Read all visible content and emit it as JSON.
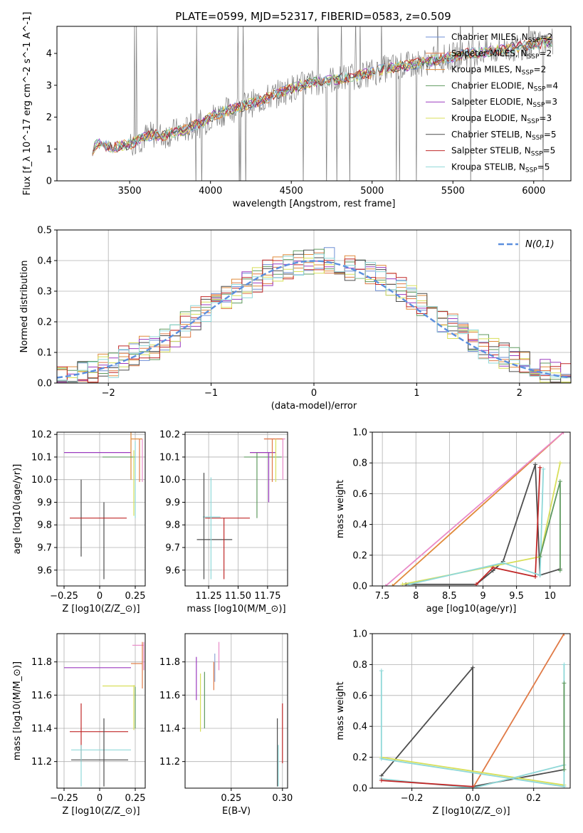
{
  "figure": {
    "title": "PLATE=0599, MJD=52317, FIBERID=0583, z=0.509"
  },
  "colors": {
    "Chabrier MILES": "#6e8fd6",
    "Salpeter MILES": "#e07a46",
    "Kroupa MILES": "#e08a3a",
    "Chabrier ELODIE": "#5f9a5f",
    "Salpeter ELODIE": "#9b3bbf",
    "Kroupa ELODIE": "#d8df5a",
    "Chabrier STELIB": "#4d4d4d",
    "Salpeter STELIB": "#c02828",
    "Kroupa STELIB": "#8fd8d8",
    "normal_curve": "#5b8fde",
    "pink_model": "#e98ac8"
  },
  "legend_entries": [
    "Chabrier MILES, N_SSP=2",
    "Salpeter MILES, N_SSP=2",
    "Kroupa MILES, N_SSP=2",
    "Chabrier ELODIE, N_SSP=4",
    "Salpeter ELODIE, N_SSP=3",
    "Kroupa ELODIE, N_SSP=3",
    "Chabrier STELIB, N_SSP=5",
    "Salpeter STELIB, N_SSP=5",
    "Kroupa STELIB, N_SSP=5"
  ],
  "chart_data": [
    {
      "id": "spectrum",
      "type": "line",
      "xlabel": "wavelength [Angstrom, rest frame]",
      "ylabel": "Flux [f_λ 10^-17 erg cm^-2 s^-1 A^-1]",
      "xlim": [
        3050,
        6230
      ],
      "ylim": [
        0,
        4.85
      ],
      "xticks": [
        3500,
        4000,
        4500,
        5000,
        5500,
        6000
      ],
      "yticks": [
        0,
        1,
        2,
        3,
        4
      ],
      "legend": "upper right",
      "x": [
        3270,
        3300,
        3350,
        3400,
        3450,
        3500,
        3550,
        3600,
        3650,
        3700,
        3750,
        3800,
        3850,
        3900,
        3950,
        4000,
        4100,
        4200,
        4300,
        4400,
        4500,
        4600,
        4700,
        4800,
        4900,
        5000,
        5100,
        5200,
        5300,
        5400,
        5500,
        5600,
        5700,
        5800,
        5900,
        6000,
        6100
      ],
      "model_flux": [
        0.95,
        1.2,
        1.1,
        1.05,
        1.1,
        1.15,
        1.25,
        1.4,
        1.45,
        1.4,
        1.5,
        1.55,
        1.6,
        1.75,
        1.8,
        2.0,
        2.2,
        2.35,
        2.5,
        2.7,
        2.9,
        3.05,
        3.15,
        3.2,
        3.3,
        3.4,
        3.55,
        3.6,
        3.7,
        3.8,
        3.9,
        4.0,
        4.05,
        4.1,
        4.2,
        4.3,
        4.35
      ],
      "data_series": "Chabrier STELIB (observed spectrum, grey)"
    },
    {
      "id": "residuals",
      "type": "histogram",
      "xlabel": "(data-model)/error",
      "ylabel": "Normed distribution",
      "xlim": [
        -2.5,
        2.5
      ],
      "ylim": [
        0,
        0.5
      ],
      "xticks": [
        -2,
        -1,
        0,
        1,
        2
      ],
      "yticks": [
        0.0,
        0.1,
        0.2,
        0.3,
        0.4,
        0.5
      ],
      "legend_label": "N(0,1)",
      "bin_width": 0.1,
      "bin_start": -2.5,
      "reference_counts": [
        0.02,
        0.02,
        0.03,
        0.04,
        0.05,
        0.06,
        0.08,
        0.09,
        0.11,
        0.12,
        0.14,
        0.16,
        0.19,
        0.21,
        0.24,
        0.26,
        0.28,
        0.3,
        0.32,
        0.34,
        0.36,
        0.37,
        0.38,
        0.39,
        0.4,
        0.4,
        0.4,
        0.39,
        0.38,
        0.37,
        0.36,
        0.34,
        0.32,
        0.3,
        0.28,
        0.26,
        0.24,
        0.21,
        0.19,
        0.16,
        0.14,
        0.12,
        0.11,
        0.09,
        0.08,
        0.06,
        0.05,
        0.04,
        0.03,
        0.02
      ]
    },
    {
      "id": "age_vs_Z",
      "type": "scatter",
      "xlabel": "Z [log10(Z/Z_⊙)]",
      "ylabel": "age [log10(age/yr)]",
      "xlim": [
        -0.3,
        0.32
      ],
      "ylim": [
        9.53,
        10.21
      ],
      "xticks": [
        -0.25,
        0.0,
        0.25
      ],
      "yticks": [
        9.6,
        9.7,
        9.8,
        9.9,
        10.0,
        10.1,
        10.2
      ],
      "points": [
        {
          "model": "Salpeter ELODIE",
          "x": -0.25,
          "xerr_hi": 0.47,
          "y": 10.12,
          "yerr": 0.0
        },
        {
          "model": "Kroupa MILES",
          "x": 0.22,
          "xerr_hi": 0.08,
          "y": 10.18,
          "yerr": 0.18
        },
        {
          "model": "Chabrier ELODIE",
          "x": 0.02,
          "xerr_hi": 0.23,
          "y": 10.1,
          "yerr": 0.0
        },
        {
          "model": "Chabrier STELIB",
          "x": -0.13,
          "xerr_hi": 0.0,
          "y": 9.83,
          "yerr": 0.17
        },
        {
          "model": "Chabrier STELIB",
          "x": 0.03,
          "xerr_hi": 0.0,
          "y": 9.73,
          "yerr": 0.17
        },
        {
          "model": "Salpeter STELIB",
          "x": -0.21,
          "xerr_hi": 0.4,
          "y": 9.83,
          "yerr": 0.0
        }
      ]
    },
    {
      "id": "age_vs_mass",
      "type": "scatter",
      "xlabel": "mass [log10(M/M_⊙)]",
      "ylabel": "",
      "xlim": [
        11.05,
        11.92
      ],
      "ylim": [
        9.53,
        10.21
      ],
      "xticks": [
        11.25,
        11.5,
        11.75
      ],
      "xtick_labels": [
        "11.25",
        "11.50",
        "11.75"
      ],
      "yticks": [
        9.6,
        9.7,
        9.8,
        9.9,
        10.0,
        10.1,
        10.2
      ]
    },
    {
      "id": "mass_weight_vs_age",
      "type": "line",
      "xlabel": "age [log10(age/yr)]",
      "ylabel": "mass weight",
      "xlim": [
        7.35,
        10.3
      ],
      "ylim": [
        0,
        1
      ],
      "xticks": [
        7.5,
        8.0,
        8.5,
        9.0,
        9.5,
        10.0
      ],
      "yticks": [
        0.0,
        0.2,
        0.4,
        0.6,
        0.8,
        1.0
      ],
      "series": [
        {
          "model": "Kroupa MILES",
          "x": [
            7.65,
            10.2
          ],
          "y": [
            0.0,
            1.0
          ]
        },
        {
          "model": "pink",
          "x": [
            7.55,
            10.2
          ],
          "y": [
            0.0,
            1.0
          ]
        },
        {
          "model": "Chabrier STELIB",
          "x": [
            7.85,
            8.9,
            9.15,
            9.3,
            9.78,
            9.85,
            10.15
          ],
          "y": [
            0.01,
            0.01,
            0.1,
            0.16,
            0.79,
            0.07,
            0.11
          ]
        },
        {
          "model": "Kroupa ELODIE",
          "x": [
            7.8,
            9.85,
            10.15
          ],
          "y": [
            0.01,
            0.19,
            0.8
          ]
        },
        {
          "model": "Salpeter STELIB",
          "x": [
            8.9,
            9.15,
            9.78,
            9.85
          ],
          "y": [
            0.01,
            0.12,
            0.06,
            0.77
          ]
        },
        {
          "model": "Kroupa STELIB",
          "x": [
            7.9,
            9.3,
            9.85,
            9.9
          ],
          "y": [
            0.01,
            0.15,
            0.07,
            0.76
          ]
        },
        {
          "model": "Chabrier ELODIE",
          "x": [
            9.85,
            10.15,
            10.15
          ],
          "y": [
            0.19,
            0.68,
            0.1
          ]
        }
      ]
    },
    {
      "id": "mass_vs_Z",
      "type": "scatter",
      "xlabel": "Z [log10(Z/Z_⊙)]",
      "ylabel": "mass [log10(M/M_⊙)]",
      "xlim": [
        -0.3,
        0.32
      ],
      "ylim": [
        11.04,
        11.97
      ],
      "xticks": [
        -0.25,
        0.0,
        0.25
      ],
      "yticks": [
        11.2,
        11.4,
        11.6,
        11.8
      ]
    },
    {
      "id": "mass_vs_EBV",
      "type": "scatter",
      "xlabel": "E(B-V)",
      "ylabel": "",
      "xlim": [
        0.205,
        0.305
      ],
      "ylim": [
        11.04,
        11.97
      ],
      "xticks": [
        0.25,
        0.3
      ],
      "xtick_labels": [
        "0.25",
        "0.30"
      ],
      "yticks": [
        11.2,
        11.4,
        11.6,
        11.8
      ]
    },
    {
      "id": "mass_weight_vs_Z",
      "type": "line",
      "xlabel": "Z [log10(Z/Z_⊙)]",
      "ylabel": "mass weight",
      "xlim": [
        -0.33,
        0.32
      ],
      "ylim": [
        0,
        1
      ],
      "xticks": [
        -0.2,
        0.0,
        0.2
      ],
      "xtick_labels": [
        "−0.2",
        "0.0",
        "0.2"
      ],
      "yticks": [
        0.0,
        0.2,
        0.4,
        0.6,
        0.8,
        1.0
      ]
    }
  ]
}
